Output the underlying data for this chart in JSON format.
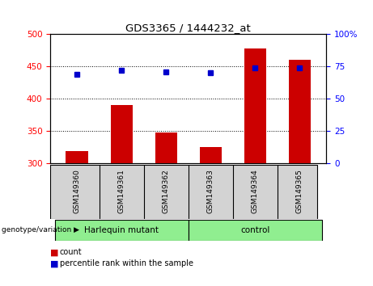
{
  "title": "GDS3365 / 1444232_at",
  "samples": [
    "GSM149360",
    "GSM149361",
    "GSM149362",
    "GSM149363",
    "GSM149364",
    "GSM149365"
  ],
  "bar_values": [
    318,
    390,
    348,
    325,
    478,
    460
  ],
  "bar_bottom": 300,
  "percentile_values": [
    69,
    72,
    71,
    70,
    74,
    74
  ],
  "ylim_left": [
    300,
    500
  ],
  "ylim_right": [
    0,
    100
  ],
  "yticks_left": [
    300,
    350,
    400,
    450,
    500
  ],
  "yticks_right": [
    0,
    25,
    50,
    75,
    100
  ],
  "ytick_labels_right": [
    "0",
    "25",
    "50",
    "75",
    "100%"
  ],
  "bar_color": "#cc0000",
  "dot_color": "#0000cc",
  "group1_label": "Harlequin mutant",
  "group2_label": "control",
  "group_label_prefix": "genotype/variation",
  "legend_bar_label": "count",
  "legend_dot_label": "percentile rank within the sample",
  "plot_bg_color": "#ffffff",
  "label_bg_color": "#d3d3d3",
  "group_box_color": "#90ee90"
}
